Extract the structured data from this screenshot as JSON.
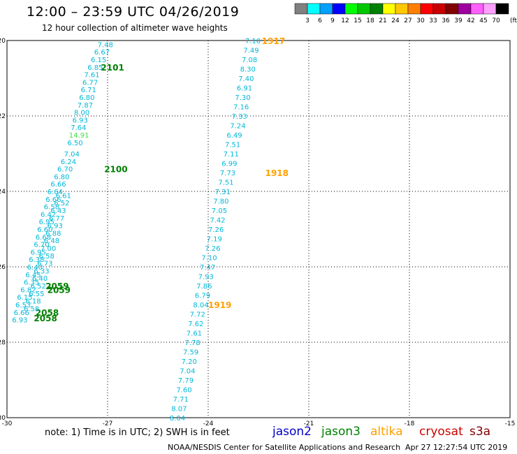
{
  "header": {
    "title": "12:00 – 23:59 UTC 04/26/2019",
    "subtitle": "12 hour collection of altimeter wave heights"
  },
  "colorscale": {
    "unit": "(ft)",
    "bins": [
      {
        "label": "3",
        "color": "#808080"
      },
      {
        "label": "6",
        "color": "#00ffff"
      },
      {
        "label": "9",
        "color": "#00a0ff"
      },
      {
        "label": "12",
        "color": "#0000ff"
      },
      {
        "label": "15",
        "color": "#00ff00"
      },
      {
        "label": "18",
        "color": "#00c800"
      },
      {
        "label": "21",
        "color": "#008000"
      },
      {
        "label": "24",
        "color": "#ffff00"
      },
      {
        "label": "27",
        "color": "#ffc800"
      },
      {
        "label": "30",
        "color": "#ff8000"
      },
      {
        "label": "33",
        "color": "#ff0000"
      },
      {
        "label": "36",
        "color": "#c80000"
      },
      {
        "label": "39",
        "color": "#800000"
      },
      {
        "label": "42",
        "color": "#a000a0"
      },
      {
        "label": "45",
        "color": "#ff60ff"
      },
      {
        "label": "70",
        "color": "#ffa0ff"
      },
      {
        "label": "",
        "color": "#000000"
      }
    ]
  },
  "map": {
    "lat_range": [
      -30,
      -20
    ],
    "lon_range": [
      -30,
      -15
    ],
    "lat_ticks": [
      "-20",
      "-22",
      "-24",
      "-26",
      "-28",
      "-30"
    ],
    "lon_ticks": [
      "-30",
      "-27",
      "-24",
      "-21",
      "-18",
      "-15"
    ],
    "lat_values": [
      -20,
      -22,
      -24,
      -26,
      -28,
      -30
    ],
    "lon_values": [
      -30,
      -27,
      -24,
      -21,
      -18,
      -15
    ],
    "grid_color": "#000000",
    "point_color": "#00b8d8",
    "jason3_color": "#008000",
    "altika_color": "#ffa000",
    "tracks": [
      {
        "name": "track-jason3-a",
        "points": [
          {
            "lon": -27.3,
            "lat": -20.1,
            "value": "7.48"
          },
          {
            "lon": -27.4,
            "lat": -20.3,
            "value": "6.67"
          },
          {
            "lon": -27.5,
            "lat": -20.5,
            "value": "6.15"
          },
          {
            "lon": -27.6,
            "lat": -20.7,
            "value": "6.85"
          },
          {
            "lon": -27.7,
            "lat": -20.9,
            "value": "7.61"
          },
          {
            "lon": -27.75,
            "lat": -21.1,
            "value": "6.77"
          },
          {
            "lon": -27.8,
            "lat": -21.3,
            "value": "6.71"
          },
          {
            "lon": -27.85,
            "lat": -21.5,
            "value": "6.80"
          },
          {
            "lon": -27.9,
            "lat": -21.7,
            "value": "7.87"
          },
          {
            "lon": -28.0,
            "lat": -21.9,
            "value": "8.00"
          },
          {
            "lon": -28.05,
            "lat": -22.1,
            "value": "6.93"
          },
          {
            "lon": -28.1,
            "lat": -22.3,
            "value": "7.64"
          },
          {
            "lon": -28.15,
            "lat": -22.5,
            "value": "14.91",
            "highlight": true
          },
          {
            "lon": -28.2,
            "lat": -22.7,
            "value": "6.50"
          },
          {
            "lon": -28.3,
            "lat": -23.0,
            "value": "7.04"
          },
          {
            "lon": -28.4,
            "lat": -23.2,
            "value": "6.24"
          },
          {
            "lon": -28.5,
            "lat": -23.4,
            "value": "6.70"
          },
          {
            "lon": -28.6,
            "lat": -23.6,
            "value": "6.80"
          },
          {
            "lon": -28.7,
            "lat": -23.8,
            "value": "6.66"
          },
          {
            "lon": -28.8,
            "lat": -24.0,
            "value": "6.64"
          },
          {
            "lon": -28.85,
            "lat": -24.2,
            "value": "6.66"
          },
          {
            "lon": -28.9,
            "lat": -24.4,
            "value": "6.58"
          },
          {
            "lon": -29.0,
            "lat": -24.6,
            "value": "6.42"
          },
          {
            "lon": -29.05,
            "lat": -24.8,
            "value": "6.95"
          },
          {
            "lon": -29.1,
            "lat": -25.0,
            "value": "6.60"
          },
          {
            "lon": -29.15,
            "lat": -25.2,
            "value": "6.68"
          },
          {
            "lon": -29.2,
            "lat": -25.4,
            "value": "6.70"
          },
          {
            "lon": -29.3,
            "lat": -25.6,
            "value": "6.95"
          },
          {
            "lon": -29.35,
            "lat": -25.8,
            "value": "6.38"
          },
          {
            "lon": -29.4,
            "lat": -26.0,
            "value": "6.40"
          },
          {
            "lon": -29.45,
            "lat": -26.2,
            "value": "6.45"
          },
          {
            "lon": -29.5,
            "lat": -26.4,
            "value": "6.35"
          },
          {
            "lon": -29.6,
            "lat": -26.6,
            "value": "6.82"
          },
          {
            "lon": -29.7,
            "lat": -26.8,
            "value": "6.15"
          },
          {
            "lon": -29.75,
            "lat": -27.0,
            "value": "6.53"
          },
          {
            "lon": -29.8,
            "lat": -27.2,
            "value": "6.66"
          },
          {
            "lon": -29.85,
            "lat": -27.4,
            "value": "6.93"
          }
        ],
        "times": [
          {
            "lon": -27.2,
            "lat": -20.7,
            "label": "2101"
          },
          {
            "lon": -27.1,
            "lat": -23.4,
            "label": "2100"
          },
          {
            "lon": -28.85,
            "lat": -26.5,
            "label": "2059"
          },
          {
            "lon": -29.15,
            "lat": -27.2,
            "label": "2058"
          }
        ]
      },
      {
        "name": "track-jason3-b",
        "points": [
          {
            "lon": -28.55,
            "lat": -24.1,
            "value": "6.61"
          },
          {
            "lon": -28.6,
            "lat": -24.3,
            "value": "6.52"
          },
          {
            "lon": -28.7,
            "lat": -24.5,
            "value": "6.43"
          },
          {
            "lon": -28.75,
            "lat": -24.7,
            "value": "6.77"
          },
          {
            "lon": -28.8,
            "lat": -24.9,
            "value": "6.93"
          },
          {
            "lon": -28.85,
            "lat": -25.1,
            "value": "6.88"
          },
          {
            "lon": -28.9,
            "lat": -25.3,
            "value": "6.48"
          },
          {
            "lon": -29.0,
            "lat": -25.5,
            "value": "7.00"
          },
          {
            "lon": -29.05,
            "lat": -25.7,
            "value": "6.58"
          },
          {
            "lon": -29.1,
            "lat": -25.9,
            "value": "6.73"
          },
          {
            "lon": -29.2,
            "lat": -26.1,
            "value": "6.33"
          },
          {
            "lon": -29.25,
            "lat": -26.3,
            "value": "6.40"
          },
          {
            "lon": -29.3,
            "lat": -26.5,
            "value": "6.52"
          },
          {
            "lon": -29.35,
            "lat": -26.7,
            "value": "6.55"
          },
          {
            "lon": -29.45,
            "lat": -26.9,
            "value": "6.18"
          },
          {
            "lon": -29.5,
            "lat": -27.1,
            "value": "6.58"
          }
        ],
        "times": [
          {
            "lon": -28.8,
            "lat": -26.6,
            "label": "2059"
          },
          {
            "lon": -29.2,
            "lat": -27.35,
            "label": "2058"
          }
        ]
      },
      {
        "name": "track-altika",
        "points": [
          {
            "lon": -22.9,
            "lat": -20.0,
            "value": "7.10"
          },
          {
            "lon": -22.95,
            "lat": -20.25,
            "value": "7.49"
          },
          {
            "lon": -23.0,
            "lat": -20.5,
            "value": "7.08"
          },
          {
            "lon": -23.05,
            "lat": -20.75,
            "value": "8.30"
          },
          {
            "lon": -23.1,
            "lat": -21.0,
            "value": "7.40"
          },
          {
            "lon": -23.15,
            "lat": -21.25,
            "value": "6.91"
          },
          {
            "lon": -23.2,
            "lat": -21.5,
            "value": "7.30"
          },
          {
            "lon": -23.25,
            "lat": -21.75,
            "value": "7.16"
          },
          {
            "lon": -23.3,
            "lat": -22.0,
            "value": "7.33"
          },
          {
            "lon": -23.35,
            "lat": -22.25,
            "value": "7.24"
          },
          {
            "lon": -23.45,
            "lat": -22.5,
            "value": "6.49"
          },
          {
            "lon": -23.5,
            "lat": -22.75,
            "value": "7.51"
          },
          {
            "lon": -23.55,
            "lat": -23.0,
            "value": "7.11"
          },
          {
            "lon": -23.6,
            "lat": -23.25,
            "value": "6.99"
          },
          {
            "lon": -23.65,
            "lat": -23.5,
            "value": "7.73"
          },
          {
            "lon": -23.7,
            "lat": -23.75,
            "value": "7.51"
          },
          {
            "lon": -23.8,
            "lat": -24.0,
            "value": "7.31"
          },
          {
            "lon": -23.85,
            "lat": -24.25,
            "value": "7.80"
          },
          {
            "lon": -23.9,
            "lat": -24.5,
            "value": "7.05"
          },
          {
            "lon": -23.95,
            "lat": -24.75,
            "value": "7.42"
          },
          {
            "lon": -24.0,
            "lat": -25.0,
            "value": "7.26"
          },
          {
            "lon": -24.05,
            "lat": -25.25,
            "value": "7.19"
          },
          {
            "lon": -24.1,
            "lat": -25.5,
            "value": "7.26"
          },
          {
            "lon": -24.2,
            "lat": -25.75,
            "value": "7.10"
          },
          {
            "lon": -24.25,
            "lat": -26.0,
            "value": "7.47"
          },
          {
            "lon": -24.3,
            "lat": -26.25,
            "value": "7.93"
          },
          {
            "lon": -24.35,
            "lat": -26.5,
            "value": "7.86"
          },
          {
            "lon": -24.4,
            "lat": -26.75,
            "value": "6.79"
          },
          {
            "lon": -24.45,
            "lat": -27.0,
            "value": "8.04"
          },
          {
            "lon": -24.55,
            "lat": -27.25,
            "value": "7.72"
          },
          {
            "lon": -24.6,
            "lat": -27.5,
            "value": "7.62"
          },
          {
            "lon": -24.65,
            "lat": -27.75,
            "value": "7.61"
          },
          {
            "lon": -24.7,
            "lat": -28.0,
            "value": "7.78"
          },
          {
            "lon": -24.75,
            "lat": -28.25,
            "value": "7.59"
          },
          {
            "lon": -24.8,
            "lat": -28.5,
            "value": "7.20"
          },
          {
            "lon": -24.85,
            "lat": -28.75,
            "value": "7.04"
          },
          {
            "lon": -24.9,
            "lat": -29.0,
            "value": "7.79"
          },
          {
            "lon": -24.95,
            "lat": -29.25,
            "value": "7.60"
          },
          {
            "lon": -25.05,
            "lat": -29.5,
            "value": "7.71"
          },
          {
            "lon": -25.1,
            "lat": -29.75,
            "value": "8.07"
          },
          {
            "lon": -25.15,
            "lat": -30.0,
            "value": "8.04"
          }
        ],
        "times": [
          {
            "lon": -22.4,
            "lat": -20.0,
            "label": "1917"
          },
          {
            "lon": -22.3,
            "lat": -23.5,
            "label": "1918"
          },
          {
            "lon": -24.0,
            "lat": -27.0,
            "label": "1919"
          }
        ]
      }
    ]
  },
  "footer": {
    "note": "note:  1) Time is in UTC;  2) SWH is in feet",
    "satellites": [
      {
        "name": "jason2",
        "color": "#0000cc"
      },
      {
        "name": "jason3",
        "color": "#008000"
      },
      {
        "name": "altika",
        "color": "#ffa000"
      },
      {
        "name": "cryosat",
        "color": "#cc0000"
      },
      {
        "name": "s3a",
        "color": "#800000"
      }
    ],
    "credit": "NOAA/NESDIS Center for Satellite Applications and Research",
    "timestamp": "Apr 27 12:27:54 UTC 2019"
  }
}
